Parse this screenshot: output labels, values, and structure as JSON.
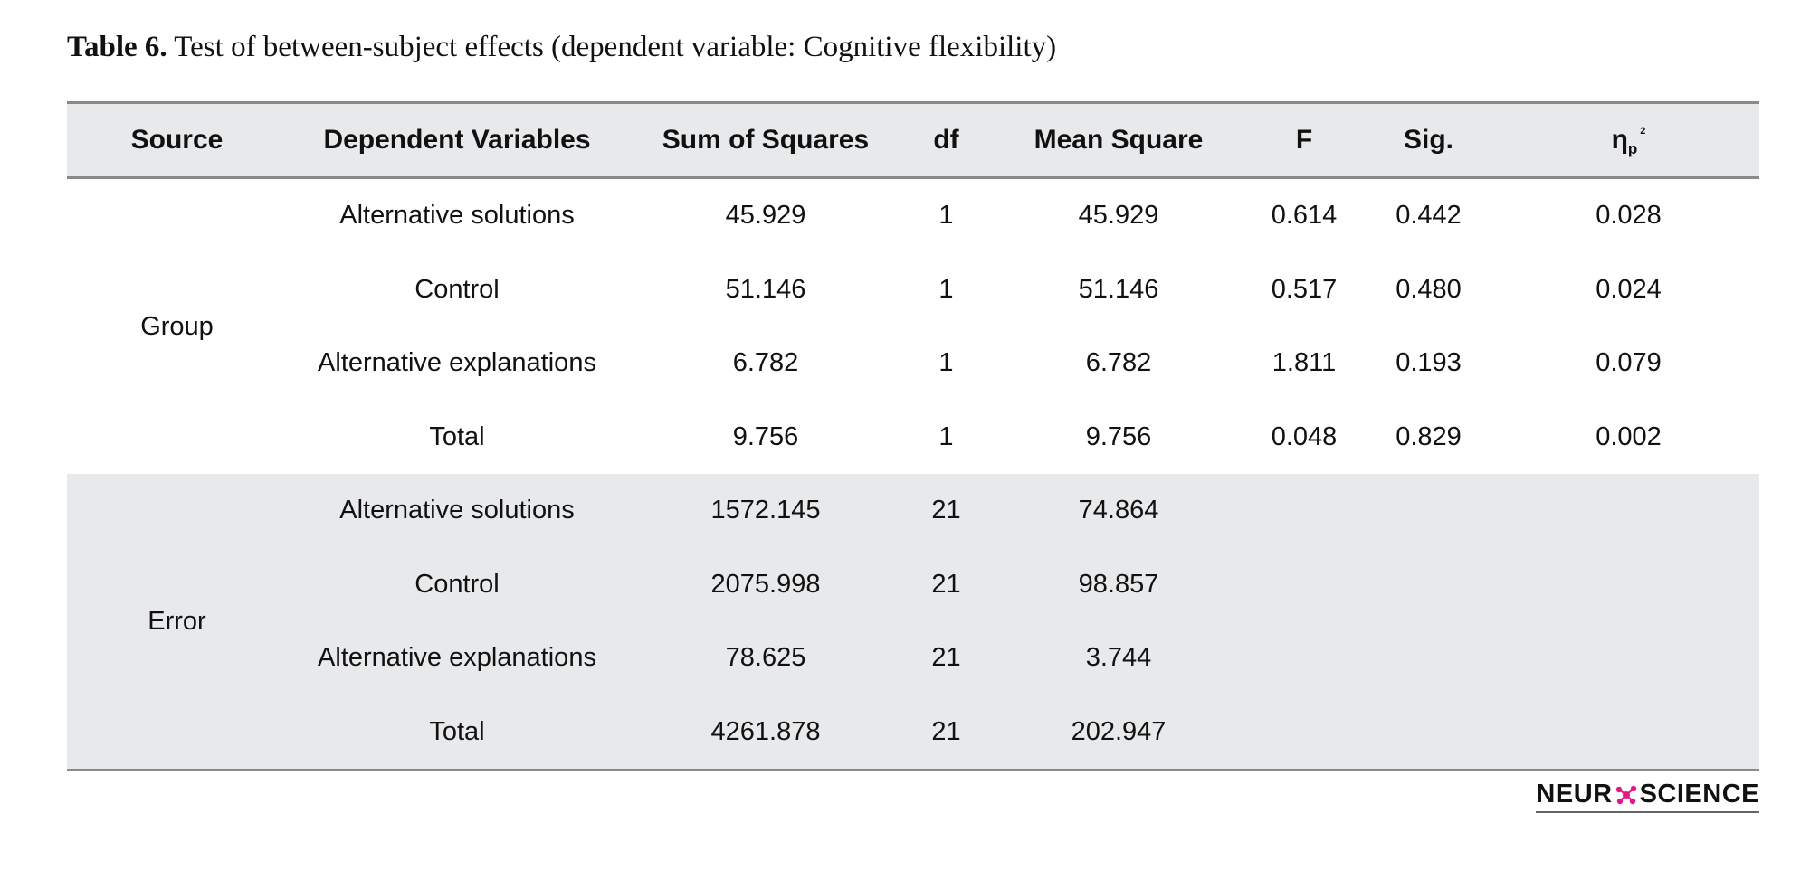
{
  "caption": {
    "label": "Table 6.",
    "text": " Test of between-subject effects (dependent variable: Cognitive flexibility)"
  },
  "table": {
    "headers": {
      "source": "Source",
      "dv": "Dependent Variables",
      "ss": "Sum of Squares",
      "df": "df",
      "ms": "Mean Square",
      "f": "F",
      "sig": "Sig.",
      "eta_symbol": "η",
      "eta_sub": "p",
      "eta_sup": "2"
    },
    "groups": [
      {
        "source": "Group",
        "rows": [
          {
            "dv": "Alternative solutions",
            "ss": "45.929",
            "df": "1",
            "ms": "45.929",
            "f": "0.614",
            "sig": "0.442",
            "eta": "0.028"
          },
          {
            "dv": "Control",
            "ss": "51.146",
            "df": "1",
            "ms": "51.146",
            "f": "0.517",
            "sig": "0.480",
            "eta": "0.024"
          },
          {
            "dv": "Alternative explanations",
            "ss": "6.782",
            "df": "1",
            "ms": "6.782",
            "f": "1.811",
            "sig": "0.193",
            "eta": "0.079"
          },
          {
            "dv": "Total",
            "ss": "9.756",
            "df": "1",
            "ms": "9.756",
            "f": "0.048",
            "sig": "0.829",
            "eta": "0.002"
          }
        ]
      },
      {
        "source": "Error",
        "rows": [
          {
            "dv": "Alternative solutions",
            "ss": "1572.145",
            "df": "21",
            "ms": "74.864",
            "f": "",
            "sig": "",
            "eta": ""
          },
          {
            "dv": "Control",
            "ss": "2075.998",
            "df": "21",
            "ms": "98.857",
            "f": "",
            "sig": "",
            "eta": ""
          },
          {
            "dv": "Alternative explanations",
            "ss": "78.625",
            "df": "21",
            "ms": "3.744",
            "f": "",
            "sig": "",
            "eta": ""
          },
          {
            "dv": "Total",
            "ss": "4261.878",
            "df": "21",
            "ms": "202.947",
            "f": "",
            "sig": "",
            "eta": ""
          }
        ]
      }
    ]
  },
  "logo": {
    "left": "NEUR",
    "right": "SCIENCE",
    "icon": "molecule-icon",
    "accent_color": "#e0198a"
  }
}
